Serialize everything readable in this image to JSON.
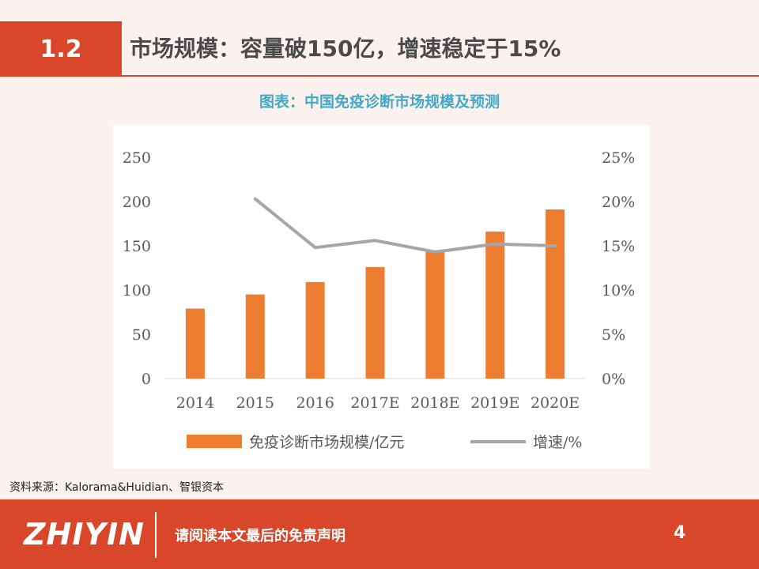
{
  "header": {
    "section_number": "1.2",
    "section_title": "市场规模：容量破150亿，增速稳定于15%"
  },
  "chart_title": "图表：中国免疫诊断市场规模及预测",
  "chart_data": {
    "type": "bar",
    "categories": [
      "2014",
      "2015",
      "2016",
      "2017E",
      "2018E",
      "2019E",
      "2020E"
    ],
    "series": [
      {
        "name": "免疫诊断市场规模/亿元",
        "type": "bar",
        "axis": "left",
        "color": "#ed7d31",
        "values": [
          79,
          95,
          109,
          126,
          145,
          166,
          191
        ]
      },
      {
        "name": "增速/%",
        "type": "line",
        "axis": "right",
        "color": "#a6a6a6",
        "values": [
          null,
          20.3,
          14.8,
          15.6,
          14.3,
          15.2,
          15.0
        ]
      }
    ],
    "y_left": {
      "min": 0,
      "max": 250,
      "ticks": [
        "0",
        "50",
        "100",
        "150",
        "200",
        "250"
      ]
    },
    "y_right": {
      "min": 0,
      "max": 25,
      "ticks": [
        "0%",
        "5%",
        "10%",
        "15%",
        "20%",
        "25%"
      ]
    },
    "legend_position": "bottom",
    "grid": false
  },
  "source": "资料来源：Kalorama&Huidian、智银资本",
  "footer": {
    "logo": "ZHIYIN",
    "disclaimer": "请阅读本文最后的免责声明",
    "page_number": "4"
  }
}
